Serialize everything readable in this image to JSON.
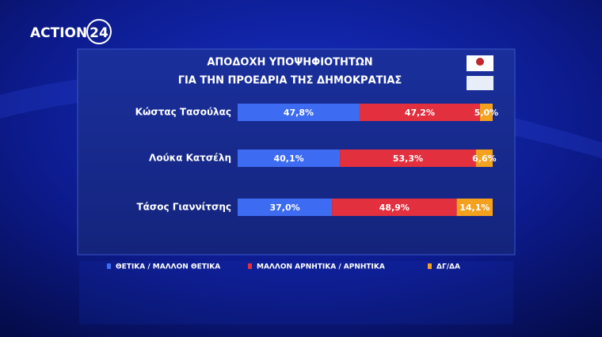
{
  "channel": {
    "name": "ACTION",
    "number": "24"
  },
  "chart_data": {
    "type": "stacked-bar-horizontal",
    "title": [
      "ΑΠΟΔΟΧΗ ΥΠΟΨΗΦΙΟΤΗΤΩΝ",
      "ΓΙΑ ΤΗΝ ΠΡΟΕΔΡΙΑ ΤΗΣ ΔΗΜΟΚΡΑΤΙΑΣ"
    ],
    "categories": [
      "Κώστας Τασούλας",
      "Λούκα Κατσέλη",
      "Τάσος Γιαννίτσης"
    ],
    "series": [
      {
        "name": "ΘΕΤΙΚΑ / ΜΑΛΛΟΝ ΘΕΤΙΚΑ",
        "color": "#3d6cf2",
        "values": [
          47.8,
          40.1,
          37.0
        ],
        "value_labels": [
          "47,8%",
          "40,1%",
          "37,0%"
        ]
      },
      {
        "name": "ΜΑΛΛΟΝ ΑΡΝΗΤΙΚΑ / ΑΡΝΗΤΙΚΑ",
        "color": "#e2303f",
        "values": [
          47.2,
          53.3,
          48.9
        ],
        "value_labels": [
          "47,2%",
          "53,3%",
          "48,9%"
        ]
      },
      {
        "name": "ΔΓ/ΔΑ",
        "color": "#f4a11e",
        "values": [
          5.0,
          6.6,
          14.1
        ],
        "value_labels": [
          "5,0%",
          "6,6%",
          "14,1%"
        ]
      }
    ]
  }
}
